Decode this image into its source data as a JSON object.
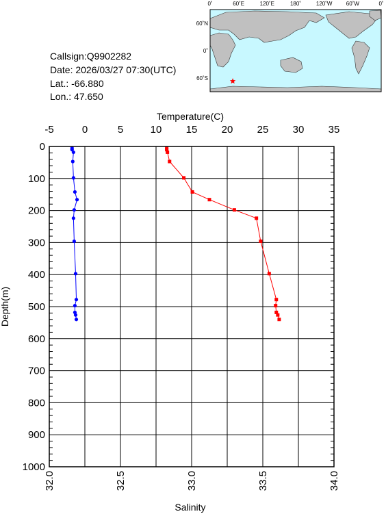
{
  "station": {
    "callsign_line": "Callsign:Q9902282",
    "date_line": "Date:  2026/03/27 07:30(UTC)",
    "lat_line": "Lat.:  -66.880",
    "lon_line": "Lon.:   47.650"
  },
  "map": {
    "lon_labels": [
      "0˚",
      "60˚E",
      "120˚E",
      "180˚",
      "120˚W",
      "60˚W",
      "0˚"
    ],
    "lat_labels": [
      "60˚N",
      "0˚",
      "60˚S"
    ],
    "ocean_color": "#c8f8ff",
    "land_color": "#c0c0c0",
    "marker": {
      "lat": -66.88,
      "lon": 47.65,
      "color": "#ff0000"
    }
  },
  "chart_data": {
    "type": "line",
    "ylabel": "Depth(m)",
    "yticks": [
      0,
      100,
      200,
      300,
      400,
      500,
      600,
      700,
      800,
      900,
      1000
    ],
    "ylim": [
      0,
      1000
    ],
    "y_inverted": true,
    "top_axis": {
      "label": "Temperature(C)",
      "ticks": [
        "-5",
        "0",
        "5",
        "10",
        "15",
        "20",
        "25",
        "30",
        "35"
      ],
      "range": [
        -5,
        35
      ]
    },
    "bottom_axis": {
      "label": "Salinity",
      "ticks": [
        "32.0",
        "32.5",
        "33.0",
        "33.5",
        "34.0"
      ],
      "range": [
        32.0,
        34.0
      ]
    },
    "grid": true,
    "series": [
      {
        "axis": "top",
        "color": "#ff0000",
        "marker": "square",
        "points": [
          [
            11.5,
            5
          ],
          [
            11.5,
            10
          ],
          [
            11.6,
            18
          ],
          [
            11.9,
            47
          ],
          [
            13.9,
            98
          ],
          [
            15.1,
            142
          ],
          [
            17.5,
            166
          ],
          [
            21.0,
            198
          ],
          [
            24.1,
            224
          ],
          [
            24.7,
            296
          ],
          [
            25.9,
            397
          ],
          [
            26.9,
            478
          ],
          [
            26.8,
            497
          ],
          [
            26.9,
            518
          ],
          [
            27.1,
            526
          ],
          [
            27.3,
            540
          ]
        ]
      },
      {
        "axis": "bottom",
        "color": "#0000ff",
        "marker": "circle",
        "points": [
          [
            32.16,
            5
          ],
          [
            32.16,
            10
          ],
          [
            32.17,
            18
          ],
          [
            32.165,
            47
          ],
          [
            32.17,
            98
          ],
          [
            32.18,
            142
          ],
          [
            32.195,
            166
          ],
          [
            32.175,
            198
          ],
          [
            32.17,
            224
          ],
          [
            32.175,
            296
          ],
          [
            32.185,
            397
          ],
          [
            32.19,
            478
          ],
          [
            32.18,
            497
          ],
          [
            32.18,
            518
          ],
          [
            32.185,
            526
          ],
          [
            32.19,
            540
          ]
        ]
      }
    ]
  }
}
